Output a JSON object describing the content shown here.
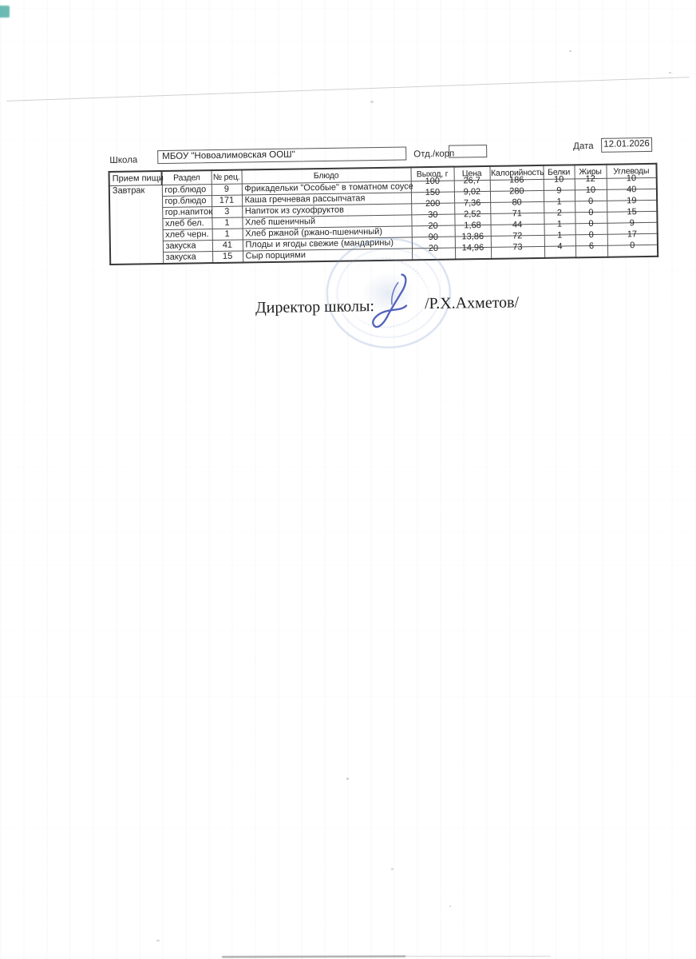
{
  "form": {
    "school_label": "Школа",
    "school_value": "МБОУ \"Новоалимовская ООШ\"",
    "dept_label": "Отд./корп",
    "dept_value": "",
    "date_label": "Дата",
    "date_value": "12.01.2026"
  },
  "table": {
    "headers": [
      "Прием пищи",
      "Раздел",
      "№ рец.",
      "Блюдо",
      "Выход, г",
      "Цена",
      "Калорийность",
      "Белки",
      "Жиры",
      "Углеводы"
    ],
    "meal": "Завтрак",
    "rows": [
      {
        "section": "гор.блюдо",
        "recipe": "9",
        "dish": "Фрикадельки \"Особые\" в томатном соусе",
        "weight": "100",
        "price": "26,7",
        "calories": "186",
        "protein": "10",
        "fat": "12",
        "carbs": "10"
      },
      {
        "section": "гор.блюдо",
        "recipe": "171",
        "dish": "Каша гречневая рассыпчатая",
        "weight": "150",
        "price": "9,02",
        "calories": "280",
        "protein": "9",
        "fat": "10",
        "carbs": "40"
      },
      {
        "section": "гор.напиток",
        "recipe": "3",
        "dish": "Напиток из  сухофруктов",
        "weight": "200",
        "price": "7,36",
        "calories": "80",
        "protein": "1",
        "fat": "0",
        "carbs": "19"
      },
      {
        "section": "хлеб бел.",
        "recipe": "1",
        "dish": "Хлеб пшеничный",
        "weight": "30",
        "price": "2,52",
        "calories": "71",
        "protein": "2",
        "fat": "0",
        "carbs": "15"
      },
      {
        "section": "хлеб черн.",
        "recipe": "1",
        "dish": "Хлеб ржаной (ржано-пшеничный)",
        "weight": "20",
        "price": "1,68",
        "calories": "44",
        "protein": "1",
        "fat": "0",
        "carbs": "9"
      },
      {
        "section": "закуска",
        "recipe": "41",
        "dish": "Плоды и ягоды свежие (мандарины)",
        "weight": "90",
        "price": "13,86",
        "calories": "72",
        "protein": "1",
        "fat": "0",
        "carbs": "17"
      },
      {
        "section": "закуска",
        "recipe": "15",
        "dish": "Сыр порциями",
        "weight": "20",
        "price": "14,96",
        "calories": "73",
        "protein": "4",
        "fat": "6",
        "carbs": "0"
      }
    ]
  },
  "signature": {
    "director_label": "Директор школы:",
    "director_name": "/Р.Х.Ахметов/"
  }
}
